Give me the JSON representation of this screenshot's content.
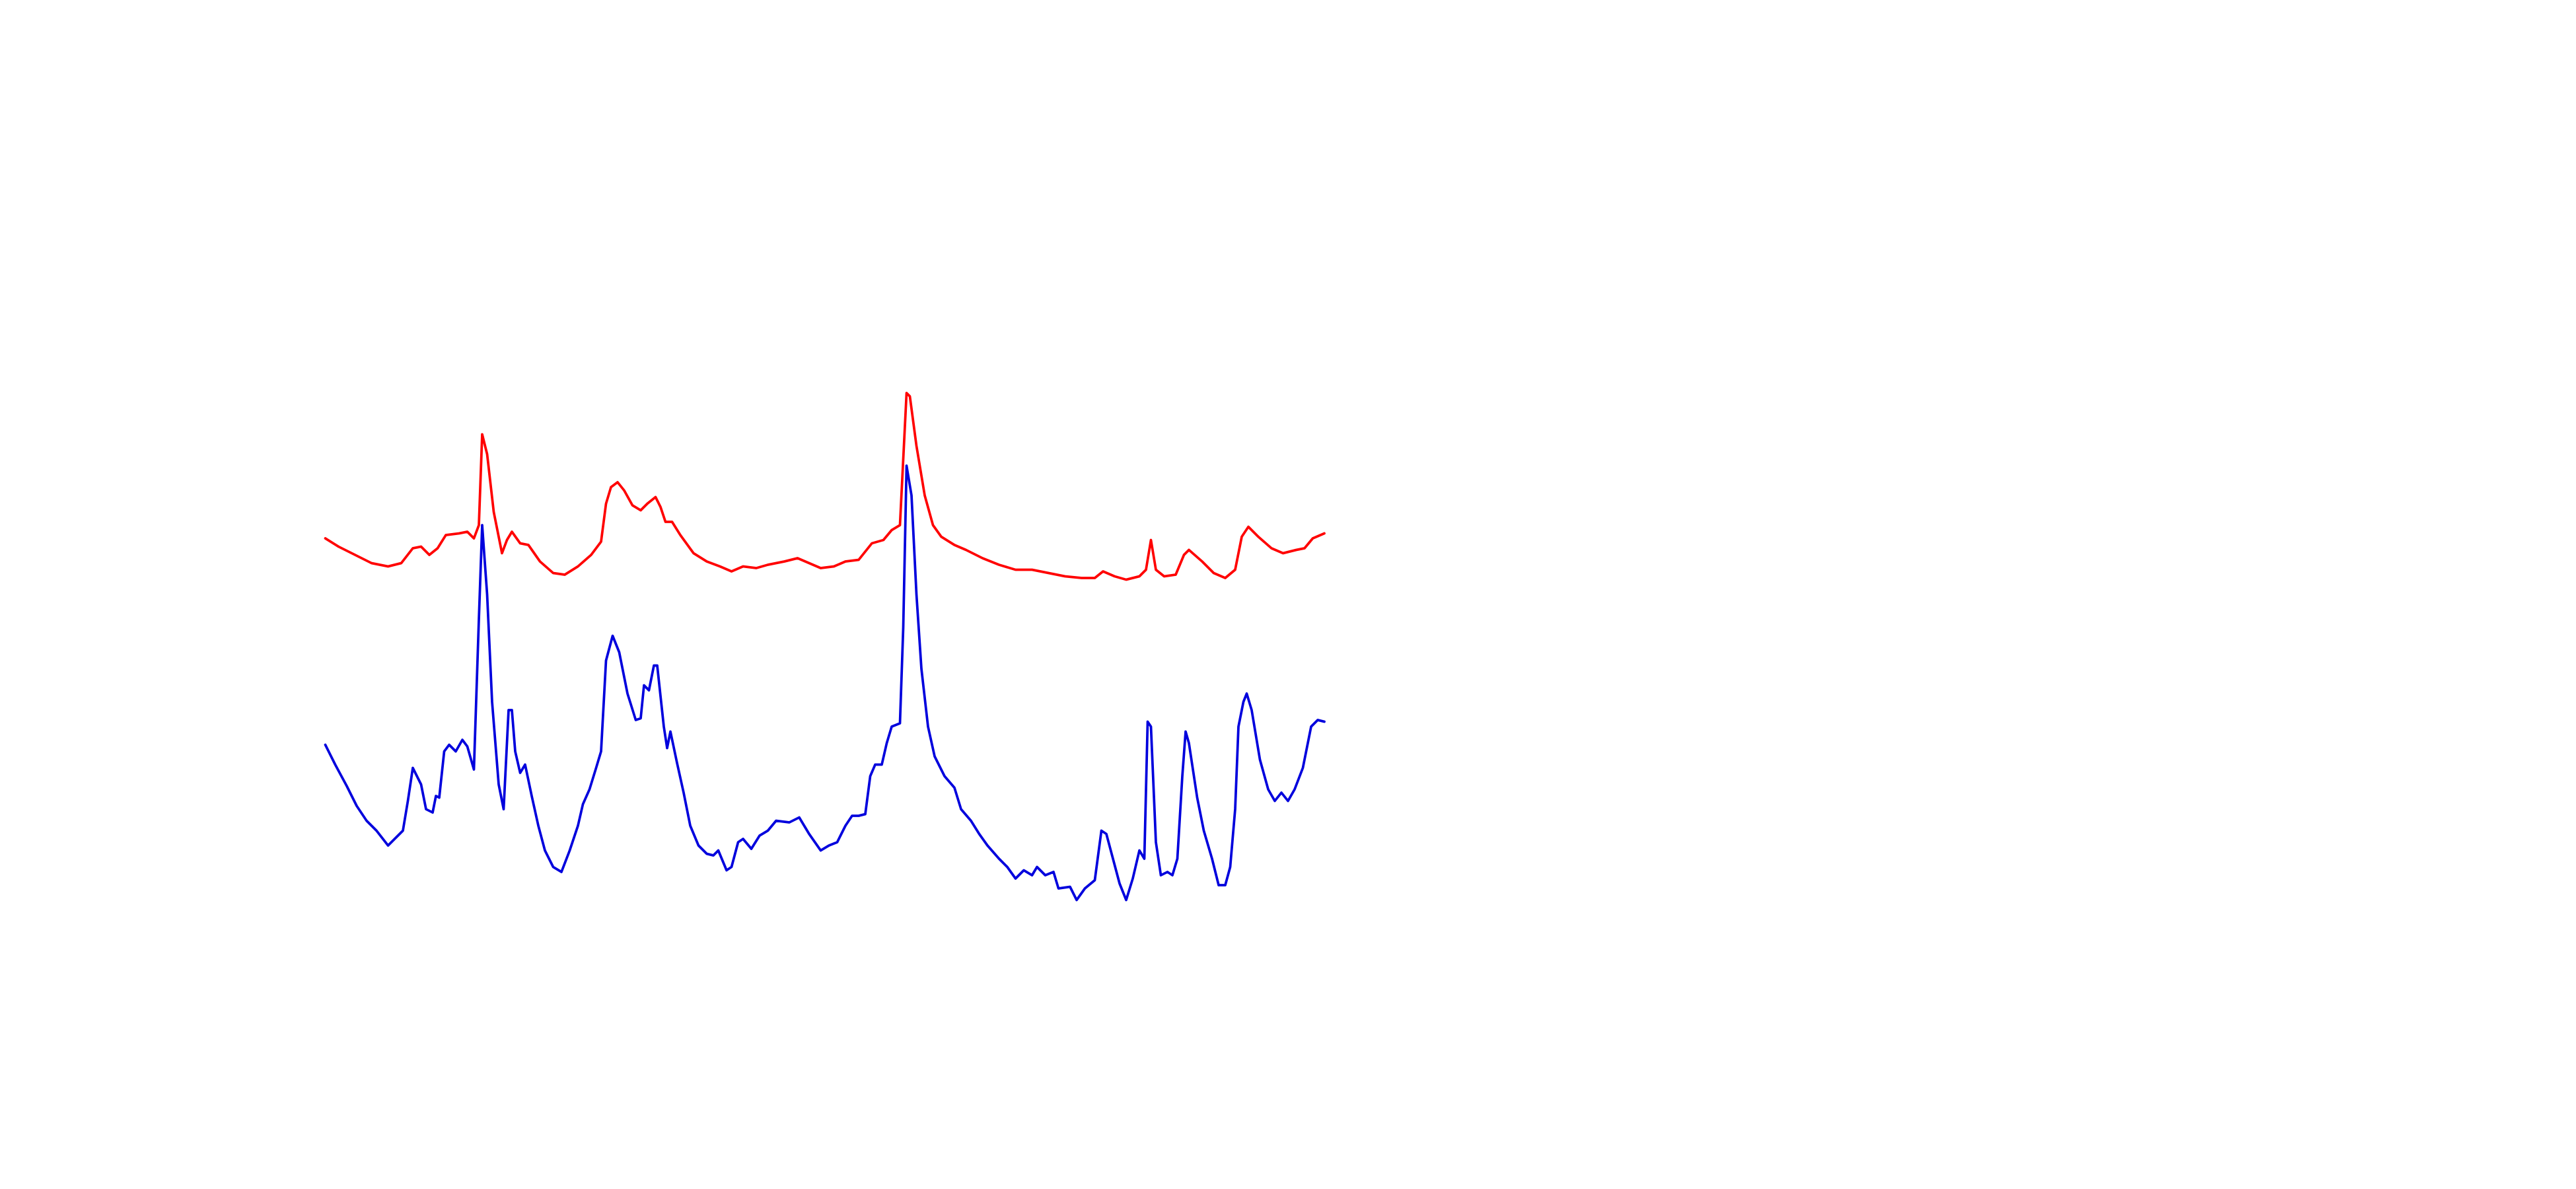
{
  "chart_data": {
    "type": "line",
    "xlim": [
      0,
      1560
    ],
    "ylim": [
      720,
      0
    ],
    "series": [
      {
        "color": "#ff0000",
        "x": [
          197,
          205,
          215,
          225,
          235,
          243,
          250,
          255,
          260,
          265,
          270,
          278,
          283,
          287,
          290,
          292,
          295,
          299,
          304,
          307,
          310,
          315,
          320,
          327,
          335,
          342,
          350,
          358,
          364,
          367,
          370,
          374,
          378,
          383,
          388,
          392,
          397,
          400,
          403,
          407,
          412,
          420,
          428,
          436,
          443,
          450,
          458,
          465,
          475,
          483,
          490,
          497,
          505,
          512,
          520,
          528,
          535,
          540,
          545,
          548,
          549,
          551,
          555,
          560,
          565,
          570,
          578,
          585,
          595,
          605,
          615,
          625,
          635,
          645,
          655,
          663,
          668,
          675,
          682,
          690,
          694,
          697,
          700,
          705,
          712,
          717,
          720,
          728,
          735,
          742,
          748,
          752,
          756,
          762,
          770,
          777,
          785,
          790,
          795,
          802
        ],
        "values": [
          326,
          331,
          336,
          341,
          343,
          341,
          332,
          331,
          336,
          332,
          324,
          323,
          322,
          326,
          318,
          263,
          275,
          310,
          335,
          327,
          322,
          329,
          330,
          340,
          347,
          348,
          343,
          336,
          328,
          305,
          295,
          292,
          297,
          306,
          309,
          305,
          301,
          307,
          316,
          316,
          324,
          335,
          340,
          343,
          346,
          343,
          344,
          342,
          340,
          338,
          341,
          344,
          343,
          340,
          339,
          329,
          327,
          321,
          318,
          258,
          238,
          240,
          270,
          300,
          318,
          325,
          330,
          333,
          338,
          342,
          345,
          345,
          347,
          349,
          350,
          350,
          346,
          349,
          351,
          349,
          345,
          327,
          345,
          349,
          348,
          336,
          333,
          340,
          347,
          350,
          345,
          325,
          319,
          325,
          332,
          335,
          333,
          332,
          326,
          323
        ]
      },
      {
        "color": "#0000dd",
        "x": [
          197,
          203,
          210,
          216,
          222,
          228,
          235,
          240,
          244,
          247,
          250,
          255,
          258,
          262,
          264,
          266,
          269,
          272,
          276,
          280,
          283,
          287,
          290,
          292,
          295,
          298,
          302,
          305,
          308,
          310,
          312,
          315,
          318,
          322,
          326,
          330,
          335,
          340,
          345,
          350,
          353,
          357,
          361,
          364,
          367,
          371,
          375,
          380,
          385,
          388,
          390,
          393,
          396,
          398,
          402,
          404,
          406,
          410,
          414,
          418,
          423,
          428,
          432,
          435,
          440,
          443,
          447,
          450,
          455,
          460,
          465,
          470,
          478,
          484,
          490,
          497,
          502,
          507,
          512,
          516,
          520,
          524,
          527,
          530,
          534,
          537,
          540,
          545,
          547,
          549,
          552,
          555,
          558,
          562,
          566,
          572,
          578,
          582,
          588,
          593,
          598,
          605,
          610,
          615,
          620,
          625,
          628,
          633,
          638,
          641,
          648,
          652,
          657,
          663,
          667,
          670,
          674,
          678,
          682,
          686,
          690,
          693,
          695,
          697,
          700,
          703,
          707,
          710,
          713,
          716,
          718,
          720,
          725,
          729,
          734,
          738,
          742,
          745,
          748,
          750,
          753,
          755,
          758,
          763,
          768,
          772,
          776,
          780,
          784,
          789,
          794,
          798,
          802
        ],
        "values": [
          451,
          463,
          476,
          488,
          497,
          503,
          512,
          507,
          503,
          485,
          465,
          475,
          490,
          492,
          482,
          483,
          455,
          451,
          455,
          448,
          452,
          466,
          375,
          318,
          360,
          425,
          475,
          490,
          430,
          430,
          455,
          468,
          463,
          482,
          500,
          515,
          525,
          528,
          515,
          500,
          487,
          478,
          465,
          455,
          400,
          385,
          395,
          420,
          436,
          435,
          415,
          418,
          403,
          403,
          440,
          453,
          443,
          462,
          480,
          500,
          512,
          517,
          518,
          515,
          527,
          525,
          510,
          508,
          514,
          506,
          503,
          497,
          498,
          495,
          505,
          515,
          512,
          510,
          500,
          494,
          494,
          493,
          470,
          463,
          463,
          450,
          440,
          438,
          380,
          282,
          300,
          360,
          405,
          440,
          458,
          470,
          477,
          490,
          497,
          505,
          512,
          520,
          525,
          532,
          527,
          530,
          525,
          530,
          528,
          538,
          537,
          545,
          538,
          533,
          503,
          505,
          520,
          535,
          545,
          532,
          515,
          520,
          437,
          440,
          510,
          530,
          528,
          530,
          520,
          470,
          443,
          450,
          483,
          503,
          520,
          536,
          536,
          525,
          490,
          440,
          425,
          420,
          430,
          460,
          478,
          485,
          480,
          485,
          478,
          465,
          440,
          436,
          437
        ]
      }
    ]
  }
}
